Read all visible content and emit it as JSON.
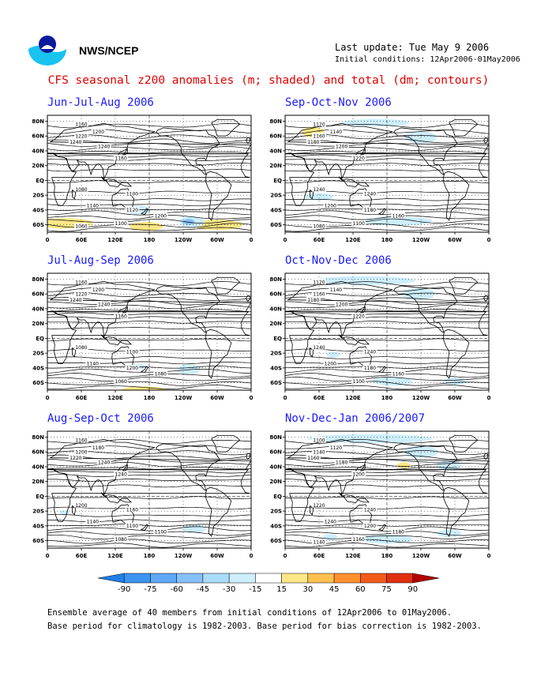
{
  "header": {
    "org": "NWS/NCEP",
    "last_update": "Last update: Tue May 9 2006",
    "initial_conditions": "Initial conditions: 12Apr2006-01May2006"
  },
  "title": "CFS seasonal z200 anomalies (m; shaded) and total (dm; contours)",
  "axes": {
    "lat_labels": [
      "80N",
      "60N",
      "40N",
      "20N",
      "EQ",
      "20S",
      "40S",
      "60S"
    ],
    "lon_labels": [
      "0",
      "60E",
      "120E",
      "180",
      "120W",
      "60W",
      "0"
    ]
  },
  "panels": [
    {
      "title": "Jun-Jul-Aug 2006",
      "contour_labels": [
        "1160",
        "1200",
        "1220",
        "1240",
        "1240",
        "1160",
        "1080",
        "1100",
        "1140",
        "1120",
        "1200",
        "1100",
        "1060"
      ],
      "anomaly_patches": [
        {
          "lon": 30,
          "lat": -58,
          "rx": 50,
          "ry": 7,
          "sign": "pos",
          "level": 1
        },
        {
          "lon": 175,
          "lat": -62,
          "rx": 30,
          "ry": 6,
          "sign": "pos",
          "level": 1
        },
        {
          "lon": 300,
          "lat": -60,
          "rx": 45,
          "ry": 7,
          "sign": "pos",
          "level": 1
        },
        {
          "lon": 255,
          "lat": -56,
          "rx": 22,
          "ry": 8,
          "sign": "neg",
          "level": 1
        },
        {
          "lon": 250,
          "lat": -56,
          "rx": 10,
          "ry": 4,
          "sign": "neg",
          "level": 2
        },
        {
          "lon": 160,
          "lat": -40,
          "rx": 22,
          "ry": 6,
          "sign": "neg",
          "level": 1
        }
      ]
    },
    {
      "title": "Sep-Oct-Nov 2006",
      "contour_labels": [
        "1120",
        "1140",
        "1160",
        "1180",
        "1200",
        "1220",
        "1240",
        "1240",
        "1200",
        "1180",
        "1160",
        "1100",
        "1080"
      ],
      "anomaly_patches": [
        {
          "lon": 50,
          "lat": 65,
          "rx": 20,
          "ry": 7,
          "sign": "pos",
          "level": 1
        },
        {
          "lon": 160,
          "lat": 78,
          "rx": 60,
          "ry": 5,
          "sign": "neg",
          "level": 1
        },
        {
          "lon": 240,
          "lat": 58,
          "rx": 28,
          "ry": 8,
          "sign": "neg",
          "level": 1
        },
        {
          "lon": 60,
          "lat": -22,
          "rx": 25,
          "ry": 5,
          "sign": "neg",
          "level": 1
        },
        {
          "lon": 200,
          "lat": -55,
          "rx": 60,
          "ry": 6,
          "sign": "neg",
          "level": 1
        }
      ]
    },
    {
      "title": "Jul-Aug-Sep 2006",
      "contour_labels": [
        "1160",
        "1200",
        "1220",
        "1240",
        "1240",
        "1160",
        "1080",
        "1100",
        "1140",
        "1200",
        "1080",
        "1060"
      ],
      "anomaly_patches": [
        {
          "lon": 170,
          "lat": -70,
          "rx": 40,
          "ry": 5,
          "sign": "pos",
          "level": 1
        },
        {
          "lon": 250,
          "lat": -42,
          "rx": 20,
          "ry": 7,
          "sign": "neg",
          "level": 1
        },
        {
          "lon": 160,
          "lat": -38,
          "rx": 15,
          "ry": 4,
          "sign": "neg",
          "level": 1
        }
      ]
    },
    {
      "title": "Oct-Nov-Dec 2006",
      "contour_labels": [
        "1120",
        "1140",
        "1160",
        "1180",
        "1200",
        "1220",
        "1240",
        "1240",
        "1200",
        "1180",
        "1160",
        "1100"
      ],
      "anomaly_patches": [
        {
          "lon": 140,
          "lat": 78,
          "rx": 90,
          "ry": 6,
          "sign": "neg",
          "level": 1
        },
        {
          "lon": 235,
          "lat": 60,
          "rx": 30,
          "ry": 8,
          "sign": "neg",
          "level": 1
        },
        {
          "lon": 85,
          "lat": -22,
          "rx": 12,
          "ry": 4,
          "sign": "neg",
          "level": 1
        },
        {
          "lon": 190,
          "lat": -58,
          "rx": 35,
          "ry": 6,
          "sign": "neg",
          "level": 1
        },
        {
          "lon": 300,
          "lat": -58,
          "rx": 20,
          "ry": 5,
          "sign": "neg",
          "level": 1
        }
      ]
    },
    {
      "title": "Aug-Sep-Oct 2006",
      "contour_labels": [
        "1160",
        "1180",
        "1200",
        "1220",
        "1240",
        "1240",
        "1200",
        "1160",
        "1140",
        "1100",
        "1100",
        "1080"
      ],
      "anomaly_patches": [
        {
          "lon": 260,
          "lat": -44,
          "rx": 20,
          "ry": 6,
          "sign": "neg",
          "level": 1
        },
        {
          "lon": 30,
          "lat": -22,
          "rx": 8,
          "ry": 3,
          "sign": "neg",
          "level": 1
        }
      ]
    },
    {
      "title": "Nov-Dec-Jan 2006/2007",
      "contour_labels": [
        "1100",
        "1120",
        "1140",
        "1160",
        "1180",
        "1200",
        "1220",
        "1240",
        "1240",
        "1200",
        "1180",
        "1160",
        "1140"
      ],
      "anomaly_patches": [
        {
          "lon": 150,
          "lat": 78,
          "rx": 110,
          "ry": 6,
          "sign": "neg",
          "level": 1
        },
        {
          "lon": 240,
          "lat": 60,
          "rx": 30,
          "ry": 8,
          "sign": "neg",
          "level": 1
        },
        {
          "lon": 290,
          "lat": 42,
          "rx": 22,
          "ry": 7,
          "sign": "neg",
          "level": 1
        },
        {
          "lon": 210,
          "lat": 42,
          "rx": 12,
          "ry": 4,
          "sign": "pos",
          "level": 1
        },
        {
          "lon": 180,
          "lat": -58,
          "rx": 45,
          "ry": 6,
          "sign": "neg",
          "level": 1
        },
        {
          "lon": 290,
          "lat": -50,
          "rx": 22,
          "ry": 5,
          "sign": "neg",
          "level": 1
        },
        {
          "lon": 80,
          "lat": -55,
          "rx": 12,
          "ry": 4,
          "sign": "neg",
          "level": 1
        }
      ]
    }
  ],
  "colorbar": {
    "labels": [
      "-90",
      "-75",
      "-60",
      "-45",
      "-30",
      "-15",
      "15",
      "30",
      "45",
      "60",
      "75",
      "90"
    ],
    "colors": [
      "#1f7fe8",
      "#3c93f0",
      "#5ea8f5",
      "#86c0f8",
      "#a9dcf8",
      "#cdeefc",
      "#ffffff",
      "#fce787",
      "#ffc050",
      "#ff9030",
      "#f25a18",
      "#e03010",
      "#b40000"
    ]
  },
  "footer": {
    "line1": "Ensemble average of 40 members from initial conditions of 12Apr2006 to 01May2006.",
    "line2": "Base period for climatology is 1982-2003. Base period for bias correction is 1982-2003."
  }
}
